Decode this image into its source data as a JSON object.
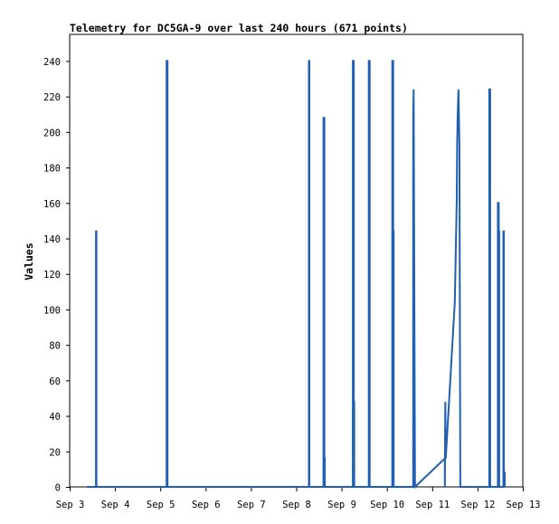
{
  "chart_data": {
    "type": "line",
    "title": "Telemetry for DC5GA-9 over last 240 hours (671 points)",
    "xlabel": "",
    "ylabel": "Values",
    "ylim": [
      0,
      255
    ],
    "yticks": [
      0,
      20,
      40,
      60,
      80,
      100,
      120,
      140,
      160,
      180,
      200,
      220,
      240
    ],
    "xlim": [
      3,
      13
    ],
    "xticks": [
      3,
      4,
      5,
      6,
      7,
      8,
      9,
      10,
      11,
      12,
      13
    ],
    "xtick_labels": [
      "Sep 3",
      "Sep 4",
      "Sep 5",
      "Sep 6",
      "Sep 7",
      "Sep 8",
      "Sep 9",
      "Sep 10",
      "Sep 11",
      "Sep 12",
      "Sep 13"
    ],
    "grid": false,
    "line_color": "#1f5fb4",
    "series": [
      {
        "x": [
          3.38,
          3.58,
          3.58,
          3.59,
          3.59,
          5.14,
          5.14,
          5.16,
          5.16,
          8.28,
          8.28,
          8.29,
          8.29,
          8.6,
          8.6,
          8.62,
          8.62,
          8.63,
          8.63,
          9.25,
          9.25,
          9.27,
          9.27,
          9.28,
          9.28,
          9.6,
          9.6,
          9.62,
          9.62,
          10.12,
          10.12,
          10.14,
          10.14,
          10.15,
          10.15,
          10.58,
          10.58,
          10.59,
          10.59,
          10.62,
          10.62,
          11.28,
          11.28,
          11.29,
          11.29,
          11.3,
          11.5,
          11.54,
          11.55,
          11.56,
          11.58,
          11.58,
          11.6,
          11.6,
          11.62,
          12.26,
          12.26,
          12.28,
          12.28,
          12.45,
          12.45,
          12.47,
          12.47,
          12.48,
          12.48,
          12.57,
          12.57,
          12.58,
          12.58,
          12.6,
          12.6
        ],
        "y": [
          0,
          0,
          144,
          144,
          0,
          0,
          240,
          240,
          0,
          0,
          240,
          240,
          0,
          0,
          208,
          208,
          16,
          16,
          0,
          0,
          240,
          240,
          48,
          48,
          0,
          0,
          240,
          240,
          0,
          0,
          240,
          240,
          144,
          144,
          0,
          0,
          208,
          224,
          224,
          0,
          0,
          16,
          0,
          48,
          48,
          16,
          104,
          160,
          192,
          208,
          224,
          224,
          192,
          192,
          0,
          0,
          224,
          224,
          0,
          0,
          160,
          160,
          144,
          144,
          0,
          0,
          144,
          144,
          8,
          8,
          0
        ]
      }
    ]
  }
}
